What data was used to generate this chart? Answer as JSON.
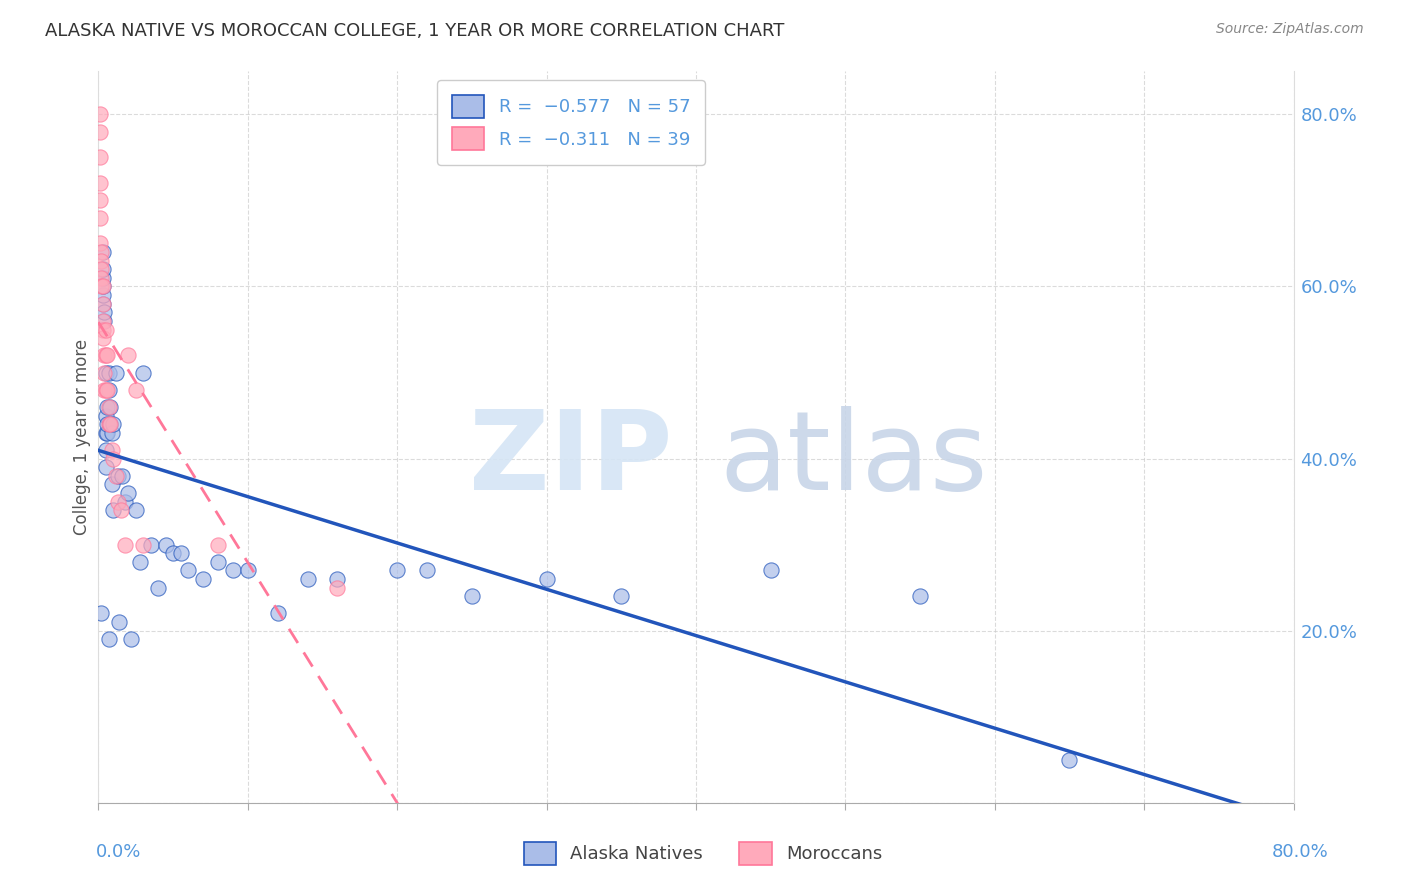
{
  "title": "ALASKA NATIVE VS MOROCCAN COLLEGE, 1 YEAR OR MORE CORRELATION CHART",
  "source": "Source: ZipAtlas.com",
  "ylabel": "College, 1 year or more",
  "legend_labels": [
    "Alaska Natives",
    "Moroccans"
  ],
  "blue_scatter_color": "#AABDE8",
  "pink_scatter_color": "#FFAABB",
  "blue_line_color": "#2255BB",
  "pink_line_color": "#FF7799",
  "background_color": "#FFFFFF",
  "grid_color": "#CCCCCC",
  "title_color": "#333333",
  "axis_color": "#5599DD",
  "alaska_x": [
    0.002,
    0.003,
    0.003,
    0.003,
    0.003,
    0.003,
    0.003,
    0.004,
    0.004,
    0.005,
    0.005,
    0.005,
    0.005,
    0.005,
    0.006,
    0.006,
    0.006,
    0.007,
    0.007,
    0.007,
    0.008,
    0.008,
    0.009,
    0.009,
    0.01,
    0.01,
    0.012,
    0.013,
    0.014,
    0.016,
    0.018,
    0.02,
    0.022,
    0.025,
    0.028,
    0.03,
    0.035,
    0.04,
    0.045,
    0.05,
    0.055,
    0.06,
    0.07,
    0.08,
    0.09,
    0.1,
    0.12,
    0.14,
    0.16,
    0.2,
    0.22,
    0.25,
    0.3,
    0.35,
    0.45,
    0.55,
    0.65
  ],
  "alaska_y": [
    0.22,
    0.58,
    0.59,
    0.6,
    0.61,
    0.62,
    0.64,
    0.56,
    0.57,
    0.39,
    0.41,
    0.43,
    0.45,
    0.5,
    0.43,
    0.44,
    0.46,
    0.48,
    0.5,
    0.19,
    0.44,
    0.46,
    0.37,
    0.43,
    0.44,
    0.34,
    0.5,
    0.38,
    0.21,
    0.38,
    0.35,
    0.36,
    0.19,
    0.34,
    0.28,
    0.5,
    0.3,
    0.25,
    0.3,
    0.29,
    0.29,
    0.27,
    0.26,
    0.28,
    0.27,
    0.27,
    0.22,
    0.26,
    0.26,
    0.27,
    0.27,
    0.24,
    0.26,
    0.24,
    0.27,
    0.24,
    0.05
  ],
  "moroccan_x": [
    0.001,
    0.001,
    0.001,
    0.001,
    0.001,
    0.001,
    0.001,
    0.002,
    0.002,
    0.002,
    0.002,
    0.002,
    0.003,
    0.003,
    0.003,
    0.003,
    0.003,
    0.004,
    0.004,
    0.004,
    0.005,
    0.005,
    0.005,
    0.006,
    0.006,
    0.007,
    0.007,
    0.008,
    0.009,
    0.01,
    0.012,
    0.013,
    0.015,
    0.018,
    0.02,
    0.025,
    0.03,
    0.08,
    0.16
  ],
  "moroccan_y": [
    0.8,
    0.78,
    0.75,
    0.72,
    0.7,
    0.68,
    0.65,
    0.64,
    0.63,
    0.62,
    0.61,
    0.6,
    0.6,
    0.58,
    0.56,
    0.55,
    0.54,
    0.52,
    0.5,
    0.48,
    0.55,
    0.52,
    0.48,
    0.52,
    0.48,
    0.46,
    0.44,
    0.44,
    0.41,
    0.4,
    0.38,
    0.35,
    0.34,
    0.3,
    0.52,
    0.48,
    0.3,
    0.3,
    0.25
  ],
  "xlim": [
    0.0,
    0.8
  ],
  "ylim": [
    0.0,
    0.85
  ],
  "yticks": [
    0.0,
    0.2,
    0.4,
    0.6,
    0.8
  ],
  "yticklabels_right": [
    "",
    "20.0%",
    "40.0%",
    "60.0%",
    "80.0%"
  ],
  "watermark_zip_color": "#D5E5F5",
  "watermark_atlas_color": "#C8D5E8"
}
